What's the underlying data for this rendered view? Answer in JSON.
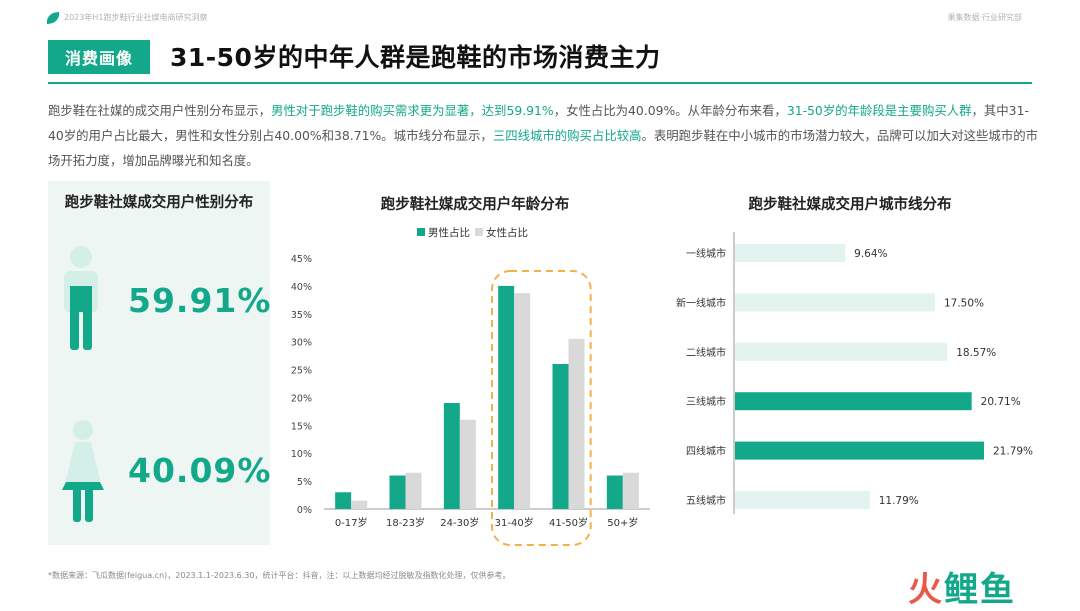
{
  "header": {
    "report_title": "2023年H1跑步鞋行业社媒电商研究洞察",
    "department": "果集数据·行业研究部",
    "tag": "消费画像",
    "headline": "31-50岁的中年人群是跑鞋的市场消费主力"
  },
  "intro": {
    "p1": "跑步鞋在社媒的成交用户性别分布显示，",
    "h1": "男性对于跑步鞋的购买需求更为显著，达到59.91%",
    "p2": "，女性占比为40.09%。从年龄分布来看，",
    "h2": "31-50岁的年龄段是主要购买人群",
    "p3": "，其中31-40岁的用户占比最大，男性和女性分别占40.00%和38.71%。城市线分布显示，",
    "h3": "三四线城市的购买占比较高",
    "p4": "。表明跑步鞋在中小城市的市场潜力较大，品牌可以加大对这些城市的市场开拓力度，增加品牌曝光和知名度。"
  },
  "gender_panel": {
    "title": "跑步鞋社媒成交用户性别分布",
    "male_pct": "59.91%",
    "female_pct": "40.09%"
  },
  "chart_data": [
    {
      "type": "bar",
      "title": "跑步鞋社媒成交用户年龄分布",
      "categories": [
        "0-17岁",
        "18-23岁",
        "24-30岁",
        "31-40岁",
        "41-50岁",
        "50+岁"
      ],
      "series": [
        {
          "name": "男性占比",
          "values": [
            3.0,
            6.0,
            19.0,
            40.0,
            26.0,
            6.0
          ]
        },
        {
          "name": "女性占比",
          "values": [
            1.5,
            6.5,
            16.0,
            38.71,
            30.5,
            6.5
          ]
        }
      ],
      "ylim": [
        0,
        45
      ],
      "yticks": [
        "0%",
        "5%",
        "10%",
        "15%",
        "20%",
        "25%",
        "30%",
        "35%",
        "40%",
        "45%"
      ],
      "highlight_categories": [
        "31-40岁",
        "41-50岁"
      ],
      "colors": {
        "male": "#13a88a",
        "female": "#d9d9d9",
        "highlight": "#f5b04a"
      }
    },
    {
      "type": "bar",
      "orientation": "horizontal",
      "title": "跑步鞋社媒成交用户城市线分布",
      "categories": [
        "一线城市",
        "新一线城市",
        "二线城市",
        "三线城市",
        "四线城市",
        "五线城市"
      ],
      "values": [
        9.64,
        17.5,
        18.57,
        20.71,
        21.79,
        11.79
      ],
      "labels": [
        "9.64%",
        "17.50%",
        "18.57%",
        "20.71%",
        "21.79%",
        "11.79%"
      ],
      "highlighted": [
        false,
        false,
        false,
        true,
        true,
        false
      ],
      "colors": {
        "normal": "#e3f3ef",
        "highlight": "#13a88a"
      }
    }
  ],
  "footer": {
    "note": "*数据来源：飞瓜数据(feigua.cn)，2023.1.1-2023.6.30，统计平台：抖音，注：以上数据均经过脱敏及指数化处理，仅供参考。",
    "brand_1": "火",
    "brand_2": "鲤鱼"
  }
}
